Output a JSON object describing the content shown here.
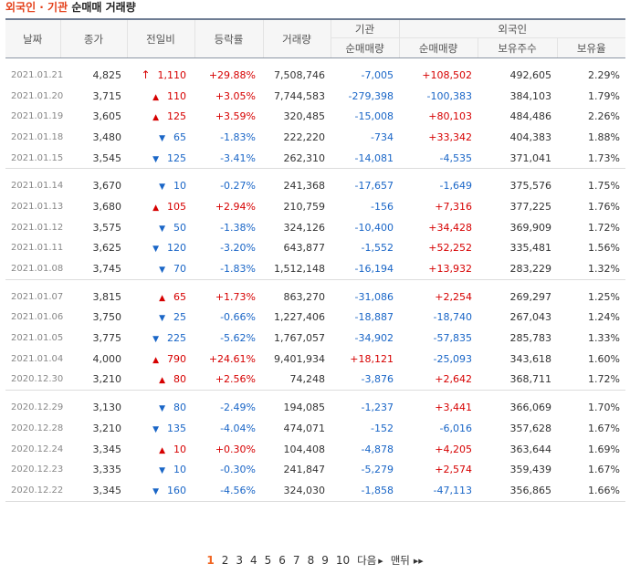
{
  "title": {
    "org": "외국인 · 기관",
    "main": "순매매 거래량"
  },
  "headers": {
    "date": "날짜",
    "close": "종가",
    "change": "전일비",
    "rate": "등락률",
    "volume": "거래량",
    "institution": "기관",
    "foreign": "외국인",
    "inst_net": "순매매량",
    "foreign_net": "순매매량",
    "foreign_hold": "보유주수",
    "foreign_ratio": "보유율"
  },
  "rows": [
    {
      "date": "2021.01.21",
      "close": "4,825",
      "change": "1,110",
      "dir": "limitup",
      "rate": "+29.88%",
      "volume": "7,508,746",
      "inst": "-7,005",
      "foreign": "+108,502",
      "hold": "492,605",
      "ratio": "2.29%"
    },
    {
      "date": "2021.01.20",
      "close": "3,715",
      "change": "110",
      "dir": "up",
      "rate": "+3.05%",
      "volume": "7,744,583",
      "inst": "-279,398",
      "foreign": "-100,383",
      "hold": "384,103",
      "ratio": "1.79%"
    },
    {
      "date": "2021.01.19",
      "close": "3,605",
      "change": "125",
      "dir": "up",
      "rate": "+3.59%",
      "volume": "320,485",
      "inst": "-15,008",
      "foreign": "+80,103",
      "hold": "484,486",
      "ratio": "2.26%"
    },
    {
      "date": "2021.01.18",
      "close": "3,480",
      "change": "65",
      "dir": "down",
      "rate": "-1.83%",
      "volume": "222,220",
      "inst": "-734",
      "foreign": "+33,342",
      "hold": "404,383",
      "ratio": "1.88%"
    },
    {
      "date": "2021.01.15",
      "close": "3,545",
      "change": "125",
      "dir": "down",
      "rate": "-3.41%",
      "volume": "262,310",
      "inst": "-14,081",
      "foreign": "-4,535",
      "hold": "371,041",
      "ratio": "1.73%"
    },
    {
      "date": "2021.01.14",
      "close": "3,670",
      "change": "10",
      "dir": "down",
      "rate": "-0.27%",
      "volume": "241,368",
      "inst": "-17,657",
      "foreign": "-1,649",
      "hold": "375,576",
      "ratio": "1.75%"
    },
    {
      "date": "2021.01.13",
      "close": "3,680",
      "change": "105",
      "dir": "up",
      "rate": "+2.94%",
      "volume": "210,759",
      "inst": "-156",
      "foreign": "+7,316",
      "hold": "377,225",
      "ratio": "1.76%"
    },
    {
      "date": "2021.01.12",
      "close": "3,575",
      "change": "50",
      "dir": "down",
      "rate": "-1.38%",
      "volume": "324,126",
      "inst": "-10,400",
      "foreign": "+34,428",
      "hold": "369,909",
      "ratio": "1.72%"
    },
    {
      "date": "2021.01.11",
      "close": "3,625",
      "change": "120",
      "dir": "down",
      "rate": "-3.20%",
      "volume": "643,877",
      "inst": "-1,552",
      "foreign": "+52,252",
      "hold": "335,481",
      "ratio": "1.56%"
    },
    {
      "date": "2021.01.08",
      "close": "3,745",
      "change": "70",
      "dir": "down",
      "rate": "-1.83%",
      "volume": "1,512,148",
      "inst": "-16,194",
      "foreign": "+13,932",
      "hold": "283,229",
      "ratio": "1.32%"
    },
    {
      "date": "2021.01.07",
      "close": "3,815",
      "change": "65",
      "dir": "up",
      "rate": "+1.73%",
      "volume": "863,270",
      "inst": "-31,086",
      "foreign": "+2,254",
      "hold": "269,297",
      "ratio": "1.25%"
    },
    {
      "date": "2021.01.06",
      "close": "3,750",
      "change": "25",
      "dir": "down",
      "rate": "-0.66%",
      "volume": "1,227,406",
      "inst": "-18,887",
      "foreign": "-18,740",
      "hold": "267,043",
      "ratio": "1.24%"
    },
    {
      "date": "2021.01.05",
      "close": "3,775",
      "change": "225",
      "dir": "down",
      "rate": "-5.62%",
      "volume": "1,767,057",
      "inst": "-34,902",
      "foreign": "-57,835",
      "hold": "285,783",
      "ratio": "1.33%"
    },
    {
      "date": "2021.01.04",
      "close": "4,000",
      "change": "790",
      "dir": "up",
      "rate": "+24.61%",
      "volume": "9,401,934",
      "inst": "+18,121",
      "foreign": "-25,093",
      "hold": "343,618",
      "ratio": "1.60%"
    },
    {
      "date": "2020.12.30",
      "close": "3,210",
      "change": "80",
      "dir": "up",
      "rate": "+2.56%",
      "volume": "74,248",
      "inst": "-3,876",
      "foreign": "+2,642",
      "hold": "368,711",
      "ratio": "1.72%"
    },
    {
      "date": "2020.12.29",
      "close": "3,130",
      "change": "80",
      "dir": "down",
      "rate": "-2.49%",
      "volume": "194,085",
      "inst": "-1,237",
      "foreign": "+3,441",
      "hold": "366,069",
      "ratio": "1.70%"
    },
    {
      "date": "2020.12.28",
      "close": "3,210",
      "change": "135",
      "dir": "down",
      "rate": "-4.04%",
      "volume": "474,071",
      "inst": "-152",
      "foreign": "-6,016",
      "hold": "357,628",
      "ratio": "1.67%"
    },
    {
      "date": "2020.12.24",
      "close": "3,345",
      "change": "10",
      "dir": "up",
      "rate": "+0.30%",
      "volume": "104,408",
      "inst": "-4,878",
      "foreign": "+4,205",
      "hold": "363,644",
      "ratio": "1.69%"
    },
    {
      "date": "2020.12.23",
      "close": "3,335",
      "change": "10",
      "dir": "down",
      "rate": "-0.30%",
      "volume": "241,847",
      "inst": "-5,279",
      "foreign": "+2,574",
      "hold": "359,439",
      "ratio": "1.67%"
    },
    {
      "date": "2020.12.22",
      "close": "3,345",
      "change": "160",
      "dir": "down",
      "rate": "-4.56%",
      "volume": "324,030",
      "inst": "-1,858",
      "foreign": "-47,113",
      "hold": "356,865",
      "ratio": "1.66%"
    }
  ],
  "pagination": {
    "pages": [
      "1",
      "2",
      "3",
      "4",
      "5",
      "6",
      "7",
      "8",
      "9",
      "10"
    ],
    "current": "1",
    "next_label": "다음",
    "last_label": "맨뒤"
  },
  "colors": {
    "up": "#d60000",
    "down": "#1a66c7",
    "accent": "#f16522"
  }
}
